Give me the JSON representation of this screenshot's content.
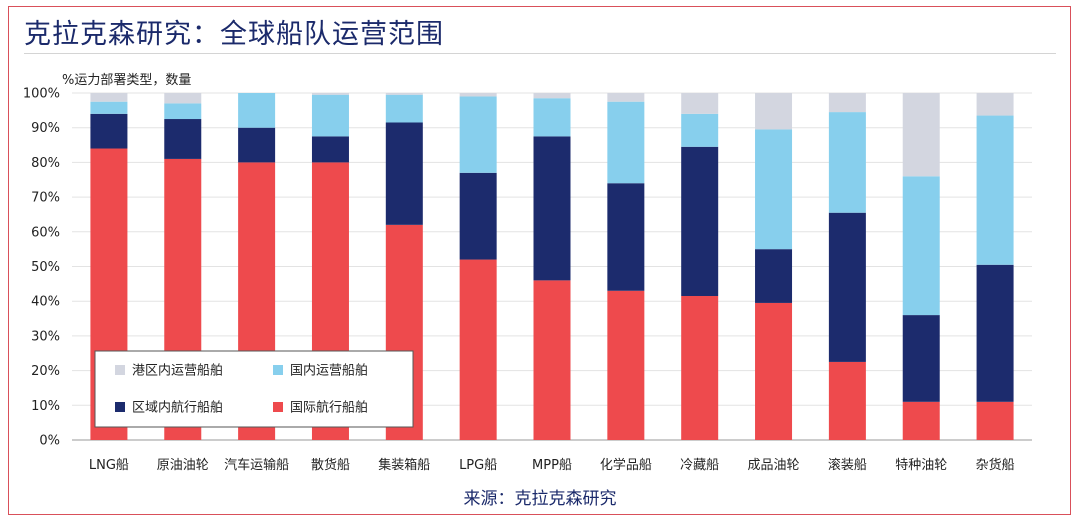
{
  "title": "克拉克森研究：全球船队运营范围",
  "ylabel": "%运力部署类型，数量",
  "source": "来源：克拉克森研究",
  "colors": {
    "frame": "#d9505a",
    "title": "#1b2a6b",
    "港区内运营船舶": "#d3d6e0",
    "国内运营船舶": "#87cfed",
    "区域内航行船舶": "#1c2b6d",
    "国际航行船舶": "#ee4a4d"
  },
  "chart_data": {
    "type": "bar",
    "stacked": true,
    "categories": [
      "LNG船",
      "原油油轮",
      "汽车运输船",
      "散货船",
      "集装箱船",
      "LPG船",
      "MPP船",
      "化学品船",
      "冷藏船",
      "成品油轮",
      "滚装船",
      "特种油轮",
      "杂货船"
    ],
    "yticks": [
      "0%",
      "10%",
      "20%",
      "30%",
      "40%",
      "50%",
      "60%",
      "70%",
      "80%",
      "90%",
      "100%"
    ],
    "ylim": [
      0,
      100
    ],
    "grid": true,
    "legend_position": "bottom-left",
    "series": [
      {
        "name": "国际航行船舶",
        "values": [
          84,
          81,
          80,
          80,
          62,
          52,
          46,
          43,
          41.5,
          39.5,
          22.5,
          11,
          11
        ]
      },
      {
        "name": "区域内航行船舶",
        "values": [
          10,
          11.5,
          10,
          7.5,
          29.5,
          25,
          41.5,
          31,
          43,
          15.5,
          43,
          25,
          39.5
        ]
      },
      {
        "name": "国内运营船舶",
        "values": [
          3.5,
          4.5,
          10,
          12,
          8,
          22,
          11,
          23.5,
          9.5,
          34.5,
          29,
          40,
          43
        ]
      },
      {
        "name": "港区内运营船舶",
        "values": [
          2.5,
          3,
          0,
          0.5,
          0.5,
          1,
          1.5,
          2.5,
          6,
          10.5,
          5.5,
          24,
          6.5
        ]
      }
    ],
    "legend": [
      "港区内运营船舶",
      "国内运营船舶",
      "区域内航行船舶",
      "国际航行船舶"
    ]
  }
}
